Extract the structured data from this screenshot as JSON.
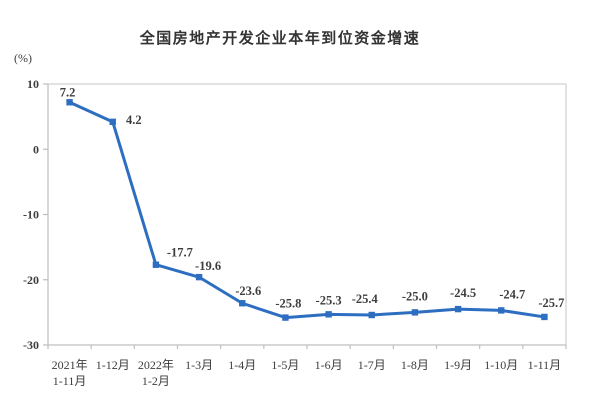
{
  "page": {
    "background_color": "#ffffff"
  },
  "chart_data": {
    "type": "line",
    "title": "全国房地产开发企业本年到位资金增速",
    "unit_label": "(%)",
    "categories": [
      [
        "2021年",
        "1-11月"
      ],
      [
        "1-12月"
      ],
      [
        "2022年",
        "1-2月"
      ],
      [
        "1-3月"
      ],
      [
        "1-4月"
      ],
      [
        "1-5月"
      ],
      [
        "1-6月"
      ],
      [
        "1-7月"
      ],
      [
        "1-8月"
      ],
      [
        "1-9月"
      ],
      [
        "1-10月"
      ],
      [
        "1-11月"
      ]
    ],
    "values": [
      7.2,
      4.2,
      -17.7,
      -19.6,
      -23.6,
      -25.8,
      -25.3,
      -25.4,
      -25.0,
      -24.5,
      -24.7,
      -25.7
    ],
    "data_labels": [
      "7.2",
      "4.2",
      "-17.7",
      "-19.6",
      "-23.6",
      "-25.8",
      "-25.3",
      "-25.4",
      "-25.0",
      "-24.5",
      "-24.7",
      "-25.7"
    ],
    "xlabel": "",
    "ylabel": "(%)",
    "y_ticks": [
      10,
      0,
      -10,
      -20,
      -30
    ],
    "ylim": [
      -30,
      10
    ],
    "grid": false,
    "legend_position": "none",
    "line_color": "#2e6ec1",
    "marker": "square",
    "axis_color": "#bfbfbf",
    "border_color": "#d9d9d9",
    "text_color": "#3d3d3d"
  }
}
